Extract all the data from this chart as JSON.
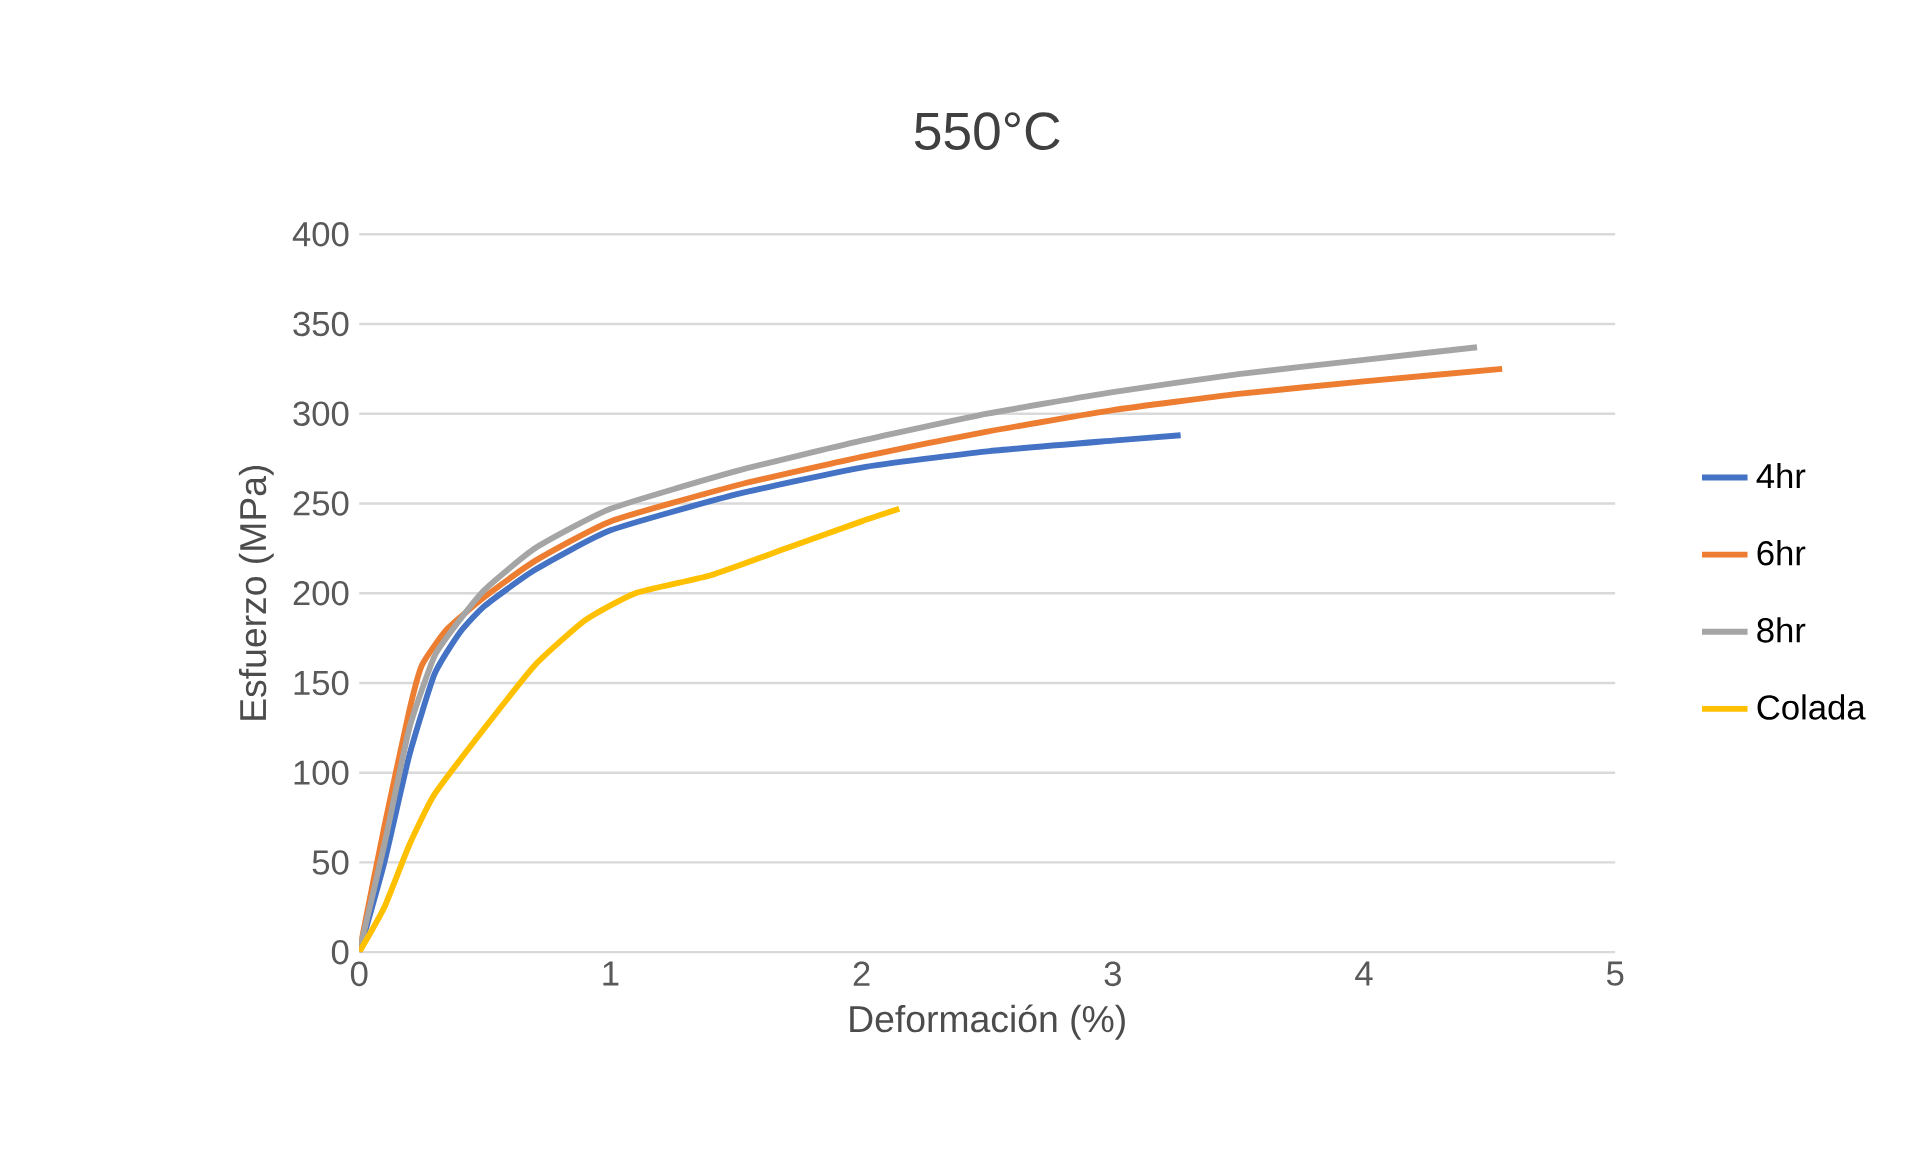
{
  "chart_data": {
    "type": "line",
    "title": "550°C",
    "xlabel": "Deformación (%)",
    "ylabel": "Esfuerzo (MPa)",
    "xlim": [
      0,
      5
    ],
    "xticks": [
      0,
      1,
      2,
      3,
      4,
      5
    ],
    "ylim": [
      0,
      400
    ],
    "yticks": [
      0,
      50,
      100,
      150,
      200,
      250,
      300,
      350,
      400
    ],
    "grid": "y",
    "legend": "right",
    "marker": "none",
    "line_style": "solid",
    "series": [
      {
        "name": "4hr",
        "color": "#4472c4",
        "x": [
          0,
          0.1,
          0.2,
          0.3,
          0.4,
          0.5,
          0.7,
          1,
          1.5,
          2,
          2.5,
          3,
          3.27
        ],
        "values": [
          0,
          50,
          110,
          155,
          178,
          193,
          213,
          235,
          255,
          270,
          279,
          285,
          288
        ]
      },
      {
        "name": "6hr",
        "color": "#ed7d31",
        "x": [
          0,
          0.1,
          0.2,
          0.25,
          0.35,
          0.5,
          0.7,
          1,
          1.5,
          2,
          2.5,
          3,
          3.5,
          4,
          4.55
        ],
        "values": [
          0,
          70,
          135,
          160,
          180,
          198,
          218,
          240,
          260,
          276,
          290,
          302,
          311,
          318,
          325
        ]
      },
      {
        "name": "8hr",
        "color": "#a5a5a5",
        "x": [
          0,
          0.1,
          0.2,
          0.3,
          0.4,
          0.5,
          0.7,
          1,
          1.5,
          2,
          2.5,
          3,
          3.5,
          4,
          4.45
        ],
        "values": [
          0,
          60,
          125,
          165,
          185,
          202,
          225,
          247,
          268,
          285,
          300,
          312,
          322,
          330,
          337
        ]
      },
      {
        "name": "Colada",
        "color": "#ffc000",
        "x": [
          0,
          0.1,
          0.2,
          0.3,
          0.5,
          0.7,
          0.9,
          1.1,
          1.4,
          1.7,
          2,
          2.15
        ],
        "values": [
          0,
          25,
          60,
          88,
          125,
          160,
          185,
          200,
          210,
          225,
          240,
          247
        ]
      }
    ]
  }
}
